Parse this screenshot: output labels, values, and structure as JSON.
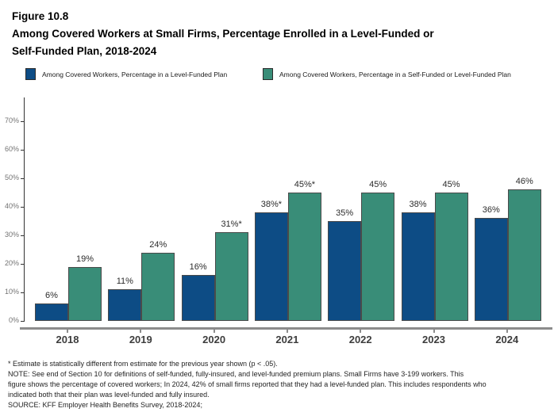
{
  "header": {
    "figure_label": "Figure 10.8",
    "title_line1": "Among Covered Workers at Small Firms, Percentage Enrolled in a Level-Funded or",
    "title_line2": "Self-Funded Plan, 2018-2024"
  },
  "legend": {
    "items": [
      {
        "label": "Among Covered Workers, Percentage in a Level-Funded Plan",
        "color": "#0D4C85"
      },
      {
        "label": "Among Covered Workers, Percentage in a Self-Funded or Level-Funded Plan",
        "color": "#398D78"
      }
    ]
  },
  "chart_data": {
    "type": "bar",
    "categories": [
      "2018",
      "2019",
      "2020",
      "2021",
      "2022",
      "2023",
      "2024"
    ],
    "series": [
      {
        "name": "Among Covered Workers, Percentage in a Level-Funded Plan",
        "key": "level-funded",
        "color": "#0D4C85",
        "values": [
          6,
          11,
          16,
          38,
          35,
          38,
          36
        ],
        "labels": [
          "6%",
          "11%",
          "16%",
          "38%*",
          "35%",
          "38%",
          "36%"
        ]
      },
      {
        "name": "Among Covered Workers, Percentage in a Self-Funded or Level-Funded Plan",
        "key": "self-or-level-funded",
        "color": "#398D78",
        "values": [
          19,
          24,
          31,
          45,
          45,
          45,
          46
        ],
        "labels": [
          "19%",
          "24%",
          "31%*",
          "45%*",
          "45%",
          "45%",
          "46%"
        ]
      }
    ],
    "title": "Among Covered Workers at Small Firms, Percentage Enrolled in a Level-Funded or Self-Funded Plan, 2018-2024",
    "xlabel": "",
    "ylabel": "",
    "ylim": [
      0,
      77
    ],
    "yticks": [
      "0%",
      "10%",
      "20%",
      "30%",
      "40%",
      "50%",
      "60%",
      "70%"
    ],
    "grid": false,
    "legend_position": "top"
  },
  "footnotes": {
    "lines": [
      "* Estimate is statistically different from estimate for the previous year shown (p < .05).",
      "NOTE: See end of Section 10 for definitions of self-funded, fully-insured, and level-funded premium plans. Small Firms have 3-199 workers. This",
      "figure shows the percentage of covered workers; In 2024, 42% of small firms reported that they had a level-funded plan. This includes respondents who",
      "indicated both that their plan was level-funded and fully insured.",
      "SOURCE: KFF Employer Health Benefits Survey, 2018-2024;"
    ]
  }
}
